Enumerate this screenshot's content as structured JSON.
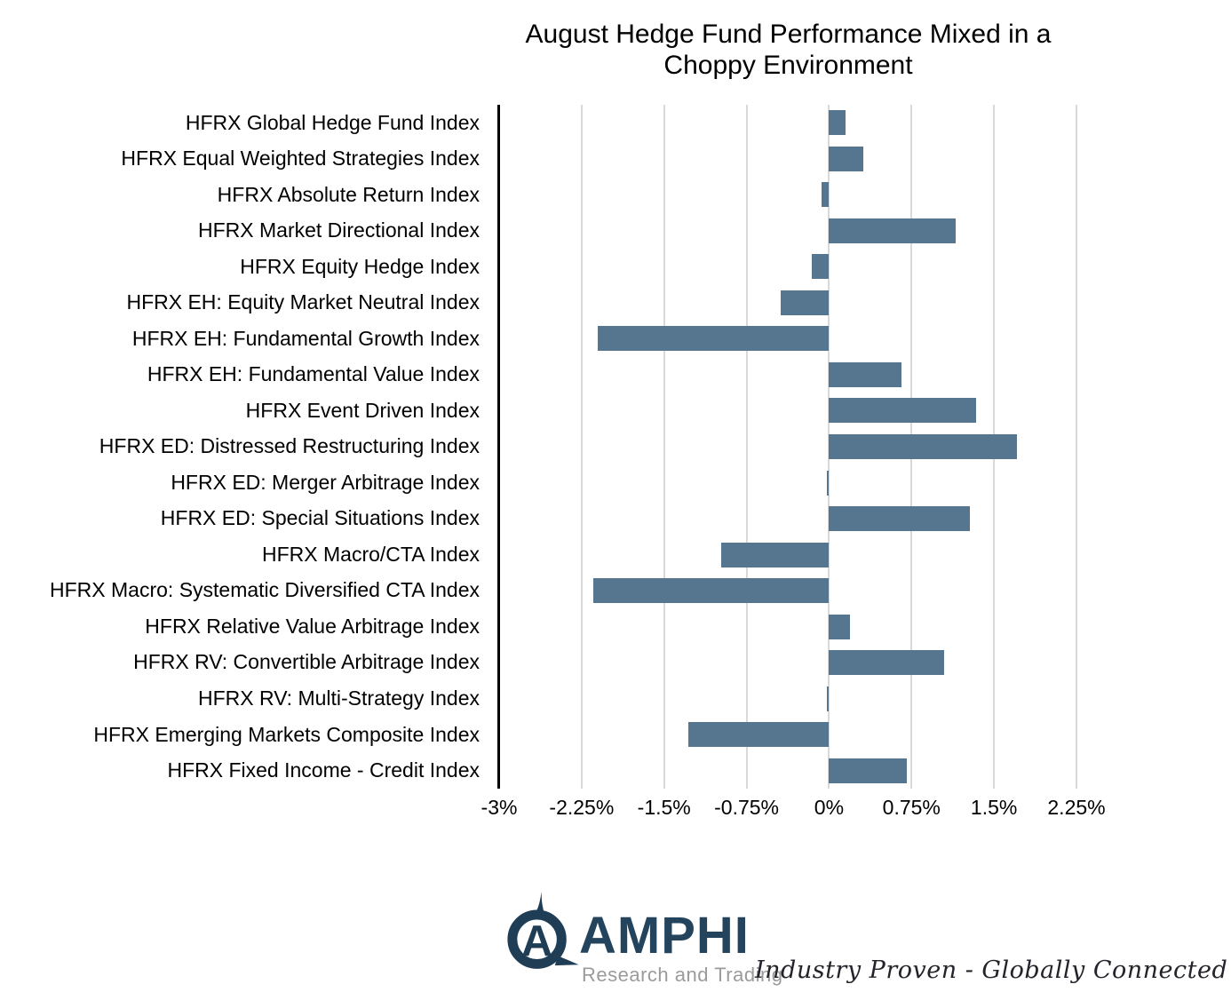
{
  "title": {
    "line1": "August Hedge Fund Performance Mixed in a",
    "line2": "Choppy Environment"
  },
  "chart_data": {
    "type": "bar",
    "orientation": "horizontal",
    "title": "August Hedge Fund Performance Mixed in a Choppy Environment",
    "categories": [
      "HFRX Global Hedge Fund Index",
      "HFRX Equal Weighted Strategies Index",
      "HFRX Absolute Return Index",
      "HFRX Market Directional Index",
      "HFRX Equity Hedge Index",
      "HFRX EH: Equity Market Neutral Index",
      "HFRX EH: Fundamental Growth Index",
      "HFRX EH: Fundamental Value Index",
      "HFRX Event Driven Index",
      "HFRX ED: Distressed Restructuring Index",
      "HFRX ED: Merger Arbitrage Index",
      "HFRX ED: Special Situations Index",
      "HFRX Macro/CTA Index",
      "HFRX Macro: Systematic Diversified CTA Index",
      "HFRX Relative Value Arbitrage Index",
      "HFRX RV: Convertible Arbitrage Index",
      "HFRX RV: Multi-Strategy Index",
      "HFRX Emerging Markets Composite Index",
      "HFRX Fixed Income - Credit Index"
    ],
    "values": [
      0.15,
      0.31,
      -0.07,
      1.15,
      -0.16,
      -0.44,
      -2.1,
      0.66,
      1.34,
      1.71,
      -0.02,
      1.28,
      -0.98,
      -2.14,
      0.19,
      1.05,
      -0.02,
      -1.28,
      0.71
    ],
    "unit": "%",
    "xlabel": "",
    "ylabel": "",
    "xlim": [
      -3,
      2.25
    ],
    "xticks": [
      -3,
      -2.25,
      -1.5,
      -0.75,
      0,
      0.75,
      1.5,
      2.25
    ],
    "xtick_labels": [
      "-3%",
      "-2.25%",
      "-1.5%",
      "-0.75%",
      "0%",
      "0.75%",
      "1.5%",
      "2.25%"
    ],
    "grid": true,
    "legend": "none",
    "bar_color": "#56758e",
    "grid_color": "#d9d9d9",
    "axis_color": "#000000"
  },
  "footer": {
    "logo_word": "AMPHI",
    "logo_sub": "Research and Trading",
    "tagline": "Industry Proven - Globally Connected",
    "logo_color": "#24435c",
    "logo_sub_color": "#9b9b9b"
  }
}
